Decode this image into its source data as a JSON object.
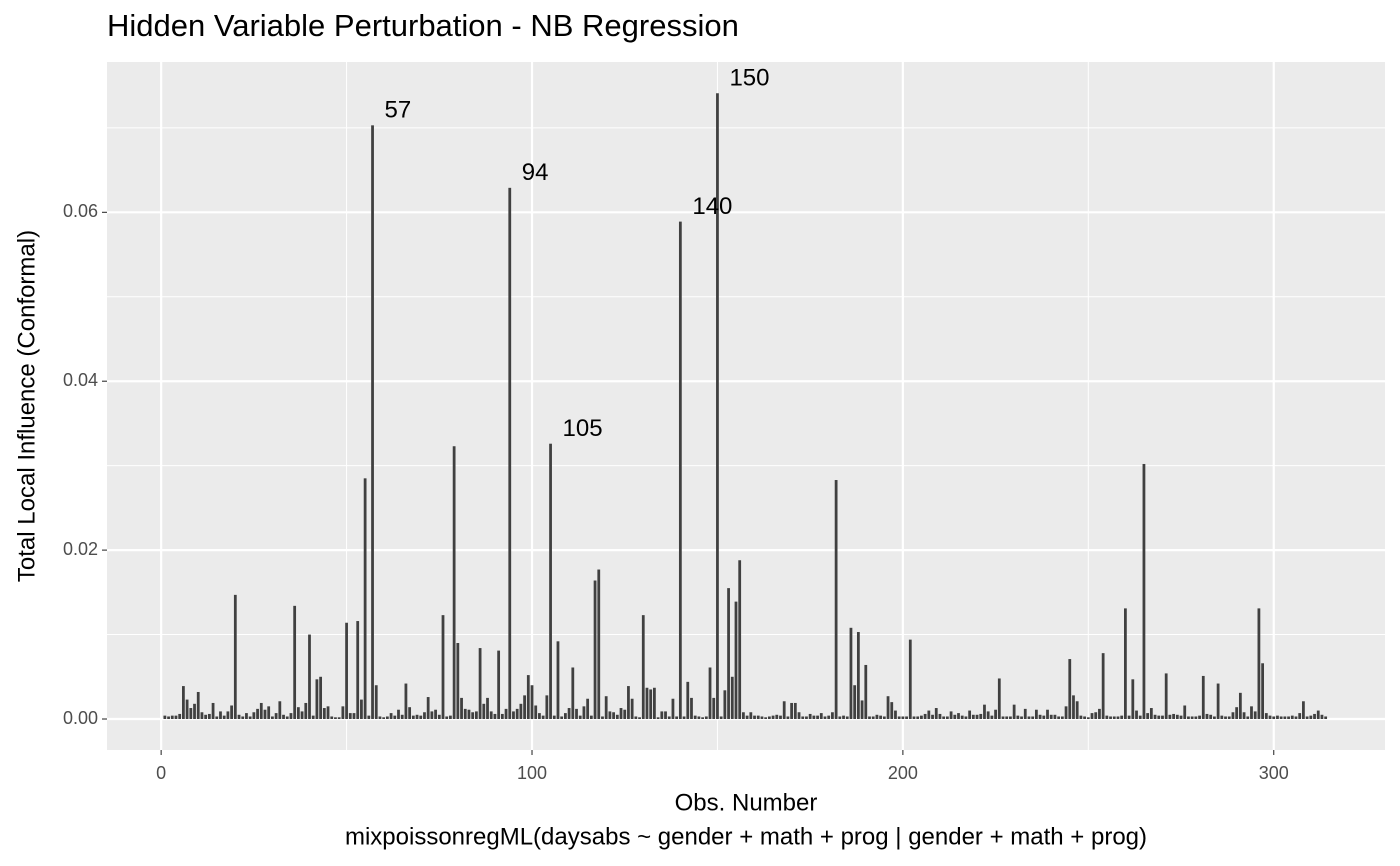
{
  "chart_data": {
    "type": "bar",
    "title": "Hidden Variable Perturbation - NB Regression",
    "xlabel": "Obs. Number",
    "caption": "mixpoissonregML(daysabs ~ gender + math + prog | gender + math + prog)",
    "ylabel": "Total Local Influence (Conformal)",
    "color": "#404040",
    "grid": true,
    "xlim": [
      -14.6,
      330
    ],
    "ylim": [
      -0.00367,
      0.0778
    ],
    "xticks": [
      0,
      100,
      200,
      300
    ],
    "yticks": [
      {
        "value": 0,
        "label": "0.00"
      },
      {
        "value": 0.02,
        "label": "0.02"
      },
      {
        "value": 0.04,
        "label": "0.04"
      },
      {
        "value": 0.06,
        "label": "0.06"
      }
    ],
    "x_minor_ticks": [
      50,
      150,
      250
    ],
    "y_minor_ticks": [
      0.01,
      0.03,
      0.05,
      0.07
    ],
    "annotations": [
      {
        "text": "57",
        "x": 57
      },
      {
        "text": "94",
        "x": 94
      },
      {
        "text": "105",
        "x": 105
      },
      {
        "text": "140",
        "x": 140
      },
      {
        "text": "150",
        "x": 150
      }
    ],
    "x": [
      1,
      2,
      3,
      4,
      5,
      6,
      7,
      8,
      9,
      10,
      11,
      12,
      13,
      14,
      15,
      16,
      17,
      18,
      19,
      20,
      21,
      22,
      23,
      24,
      25,
      26,
      27,
      28,
      29,
      30,
      31,
      32,
      33,
      34,
      35,
      36,
      37,
      38,
      39,
      40,
      41,
      42,
      43,
      44,
      45,
      46,
      47,
      48,
      49,
      50,
      51,
      52,
      53,
      54,
      55,
      56,
      57,
      58,
      59,
      60,
      61,
      62,
      63,
      64,
      65,
      66,
      67,
      68,
      69,
      70,
      71,
      72,
      73,
      74,
      75,
      76,
      77,
      78,
      79,
      80,
      81,
      82,
      83,
      84,
      85,
      86,
      87,
      88,
      89,
      90,
      91,
      92,
      93,
      94,
      95,
      96,
      97,
      98,
      99,
      100,
      101,
      102,
      103,
      104,
      105,
      106,
      107,
      108,
      109,
      110,
      111,
      112,
      113,
      114,
      115,
      116,
      117,
      118,
      119,
      120,
      121,
      122,
      123,
      124,
      125,
      126,
      127,
      128,
      129,
      130,
      131,
      132,
      133,
      134,
      135,
      136,
      137,
      138,
      139,
      140,
      141,
      142,
      143,
      144,
      145,
      146,
      147,
      148,
      149,
      150,
      151,
      152,
      153,
      154,
      155,
      156,
      157,
      158,
      159,
      160,
      161,
      162,
      163,
      164,
      165,
      166,
      167,
      168,
      169,
      170,
      171,
      172,
      173,
      174,
      175,
      176,
      177,
      178,
      179,
      180,
      181,
      182,
      183,
      184,
      185,
      186,
      187,
      188,
      189,
      190,
      191,
      192,
      193,
      194,
      195,
      196,
      197,
      198,
      199,
      200,
      201,
      202,
      203,
      204,
      205,
      206,
      207,
      208,
      209,
      210,
      211,
      212,
      213,
      214,
      215,
      216,
      217,
      218,
      219,
      220,
      221,
      222,
      223,
      224,
      225,
      226,
      227,
      228,
      229,
      230,
      231,
      232,
      233,
      234,
      235,
      236,
      237,
      238,
      239,
      240,
      241,
      242,
      243,
      244,
      245,
      246,
      247,
      248,
      249,
      250,
      251,
      252,
      253,
      254,
      255,
      256,
      257,
      258,
      259,
      260,
      261,
      262,
      263,
      264,
      265,
      266,
      267,
      268,
      269,
      270,
      271,
      272,
      273,
      274,
      275,
      276,
      277,
      278,
      279,
      280,
      281,
      282,
      283,
      284,
      285,
      286,
      287,
      288,
      289,
      290,
      291,
      292,
      293,
      294,
      295,
      296,
      297,
      298,
      299,
      300,
      301,
      302,
      303,
      304,
      305,
      306,
      307,
      308,
      309,
      310,
      311,
      312,
      313,
      314
    ],
    "values": [
      0.0004,
      0.0003,
      0.0004,
      0.0004,
      0.0006,
      0.0039,
      0.0023,
      0.0013,
      0.0018,
      0.0032,
      0.0008,
      0.0005,
      0.0006,
      0.0019,
      0.0003,
      0.0009,
      0.0004,
      0.0009,
      0.0016,
      0.0147,
      0.0005,
      0.0003,
      0.0007,
      0.0003,
      0.0008,
      0.0012,
      0.0019,
      0.0011,
      0.0015,
      0.0003,
      0.0007,
      0.0021,
      0.0005,
      0.0003,
      0.0007,
      0.0134,
      0.0014,
      0.0009,
      0.0019,
      0.01,
      0.0004,
      0.0047,
      0.005,
      0.0013,
      0.0015,
      0.0003,
      0.0002,
      0.0002,
      0.0015,
      0.0114,
      0.0007,
      0.0007,
      0.0116,
      0.0023,
      0.0285,
      0.0004,
      0.0703,
      0.004,
      0.0003,
      0.0002,
      0.0003,
      0.0007,
      0.0004,
      0.0011,
      0.0005,
      0.0042,
      0.0014,
      0.0004,
      0.0005,
      0.0004,
      0.0008,
      0.0026,
      0.0009,
      0.0011,
      0.0005,
      0.0123,
      0.0003,
      0.0004,
      0.0323,
      0.009,
      0.0025,
      0.0012,
      0.0011,
      0.0008,
      0.0009,
      0.0084,
      0.0018,
      0.0025,
      0.0009,
      0.0006,
      0.0081,
      0.0006,
      0.0012,
      0.0629,
      0.0009,
      0.0012,
      0.0018,
      0.0028,
      0.0052,
      0.004,
      0.0016,
      0.0007,
      0.0004,
      0.0028,
      0.0326,
      0.0004,
      0.0092,
      0.0003,
      0.0007,
      0.0013,
      0.0061,
      0.0012,
      0.0004,
      0.0015,
      0.0024,
      0.0004,
      0.0164,
      0.0177,
      0.0003,
      0.0027,
      0.0009,
      0.0008,
      0.0005,
      0.0013,
      0.0011,
      0.0039,
      0.0024,
      0.0003,
      0.0002,
      0.0123,
      0.0037,
      0.0035,
      0.0037,
      0.0002,
      0.0009,
      0.0009,
      0.0003,
      0.0024,
      0.0003,
      0.0589,
      0.0003,
      0.0044,
      0.0025,
      0.0004,
      0.0003,
      0.0002,
      0.0003,
      0.0061,
      0.0025,
      0.0741,
      0.0003,
      0.0034,
      0.0155,
      0.005,
      0.0139,
      0.0188,
      0.0008,
      0.0004,
      0.0008,
      0.0004,
      0.0004,
      0.0003,
      0.0002,
      0.0003,
      0.0004,
      0.0005,
      0.0004,
      0.0021,
      0.0003,
      0.0019,
      0.0019,
      0.0008,
      0.0003,
      0.0003,
      0.0006,
      0.0004,
      0.0004,
      0.0007,
      0.0003,
      0.0004,
      0.0008,
      0.0283,
      0.0003,
      0.0004,
      0.0003,
      0.0108,
      0.004,
      0.0103,
      0.0022,
      0.0064,
      0.0003,
      0.0003,
      0.0005,
      0.0004,
      0.0003,
      0.0027,
      0.002,
      0.001,
      0.0003,
      0.0003,
      0.0003,
      0.0094,
      0.0003,
      0.0003,
      0.0004,
      0.0006,
      0.001,
      0.0005,
      0.0013,
      0.0006,
      0.0003,
      0.0003,
      0.0009,
      0.0005,
      0.0007,
      0.0004,
      0.0003,
      0.001,
      0.0005,
      0.0005,
      0.0006,
      0.0017,
      0.0009,
      0.0004,
      0.0011,
      0.0048,
      0.0003,
      0.0003,
      0.0003,
      0.0017,
      0.0004,
      0.0003,
      0.0012,
      0.0003,
      0.0003,
      0.0011,
      0.0005,
      0.0004,
      0.0011,
      0.0005,
      0.0005,
      0.0003,
      0.0003,
      0.0015,
      0.0071,
      0.0028,
      0.0021,
      0.0004,
      0.0003,
      0.0002,
      0.0007,
      0.0008,
      0.0012,
      0.0078,
      0.0004,
      0.0003,
      0.0003,
      0.0003,
      0.0004,
      0.0131,
      0.0004,
      0.0047,
      0.001,
      0.0004,
      0.0302,
      0.0007,
      0.0013,
      0.0005,
      0.0004,
      0.0004,
      0.0054,
      0.0005,
      0.0006,
      0.0005,
      0.0004,
      0.0016,
      0.0003,
      0.0003,
      0.0003,
      0.0004,
      0.0051,
      0.0006,
      0.0005,
      0.0003,
      0.0042,
      0.0004,
      0.0003,
      0.0003,
      0.0008,
      0.0014,
      0.0031,
      0.0008,
      0.0003,
      0.0015,
      0.0009,
      0.0131,
      0.0066,
      0.0007,
      0.0004,
      0.0003,
      0.0004,
      0.0003,
      0.0003,
      0.0003,
      0.0004,
      0.0003,
      0.0007,
      0.0021,
      0.0003,
      0.0004,
      0.0006,
      0.001,
      0.0005,
      0.0003
    ]
  }
}
